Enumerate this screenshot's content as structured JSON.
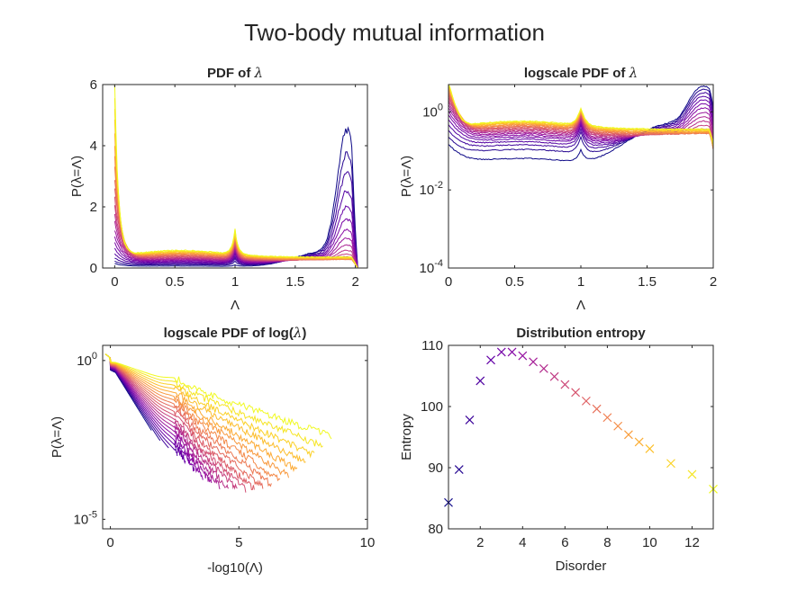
{
  "figure": {
    "suptitle": "Two-body mutual information"
  },
  "colors": {
    "colormap": [
      "#0d0887",
      "#41049d",
      "#6a00a8",
      "#8f0da4",
      "#b12a90",
      "#cc4778",
      "#e16462",
      "#f2844b",
      "#fca636",
      "#fcce25",
      "#f0f921"
    ]
  },
  "chart_data": [
    {
      "type": "line",
      "title": "PDF of λ",
      "title_parts": {
        "text": "PDF of ",
        "symbol": "λ"
      },
      "xlabel": "Λ",
      "ylabel": "P(λ=Λ)",
      "xlim": [
        -0.1,
        2.1
      ],
      "ylim": [
        0,
        6
      ],
      "xscale": "linear",
      "yscale": "linear",
      "xticks": [
        0,
        0.5,
        1,
        1.5,
        2
      ],
      "xticklabels": [
        "0",
        "0.5",
        "1",
        "1.5",
        "2"
      ],
      "yticks": [
        0,
        2,
        4,
        6
      ],
      "yticklabels": [
        "0",
        "2",
        "4",
        "6"
      ],
      "series_count": 22,
      "series_colormap": "plasma (dark blue = low disorder, yellow = high disorder)",
      "approx_peaks": {
        "left_peak_max": 5.6,
        "right_peak_max": 4.1,
        "center_cusp_max": 1.1
      }
    },
    {
      "type": "line",
      "title": "logscale PDF of λ",
      "title_parts": {
        "text": "logscale PDF of ",
        "symbol": "λ"
      },
      "xlabel": "Λ",
      "ylabel": "P(λ=Λ)",
      "xlim": [
        0,
        2
      ],
      "ylim": [
        0.0001,
        5
      ],
      "xscale": "linear",
      "yscale": "log",
      "xticks": [
        0,
        0.5,
        1,
        1.5,
        2
      ],
      "xticklabels": [
        "0",
        "0.5",
        "1",
        "1.5",
        "2"
      ],
      "yticks": [
        0.0001,
        0.01,
        1
      ],
      "yticklabels": [
        {
          "base": "10",
          "exp": "-4"
        },
        {
          "base": "10",
          "exp": "-2"
        },
        {
          "base": "10",
          "exp": "0"
        }
      ],
      "series_count": 22
    },
    {
      "type": "line",
      "title": "logscale PDF of log(λ)",
      "title_parts": {
        "text": "logscale PDF of log(",
        "symbol": "λ",
        "suffix": ")"
      },
      "xlabel": "-log10(Λ)",
      "ylabel": "P(λ=Λ)",
      "xlim": [
        -0.3,
        10
      ],
      "ylim": [
        5e-06,
        3
      ],
      "xscale": "linear",
      "yscale": "log",
      "xticks": [
        0,
        5,
        10
      ],
      "xticklabels": [
        "0",
        "5",
        "10"
      ],
      "yticks": [
        1e-05,
        1
      ],
      "yticklabels": [
        {
          "base": "10",
          "exp": "-5"
        },
        {
          "base": "10",
          "exp": "0"
        }
      ],
      "series_count": 22
    },
    {
      "type": "scatter",
      "title": "Distribution entropy",
      "xlabel": "Disorder",
      "ylabel": "Entropy",
      "xlim": [
        0.5,
        13
      ],
      "ylim": [
        80,
        110
      ],
      "xticks": [
        2,
        4,
        6,
        8,
        10,
        12
      ],
      "xticklabels": [
        "2",
        "4",
        "6",
        "8",
        "10",
        "12"
      ],
      "yticks": [
        80,
        90,
        100,
        110
      ],
      "yticklabels": [
        "80",
        "90",
        "100",
        "110"
      ],
      "marker": "x",
      "x": [
        0.5,
        1.0,
        1.5,
        2.0,
        2.5,
        3.0,
        3.5,
        4.0,
        4.5,
        5.0,
        5.5,
        6.0,
        6.5,
        7.0,
        7.5,
        8.0,
        8.5,
        9.0,
        9.5,
        10.0,
        11.0,
        12.0,
        13.0
      ],
      "y": [
        84.3,
        89.7,
        97.8,
        104.2,
        107.6,
        108.9,
        108.9,
        108.3,
        107.3,
        106.2,
        104.9,
        103.6,
        102.3,
        100.9,
        99.6,
        98.2,
        96.8,
        95.4,
        94.2,
        93.1,
        90.7,
        88.9,
        86.5
      ]
    }
  ]
}
